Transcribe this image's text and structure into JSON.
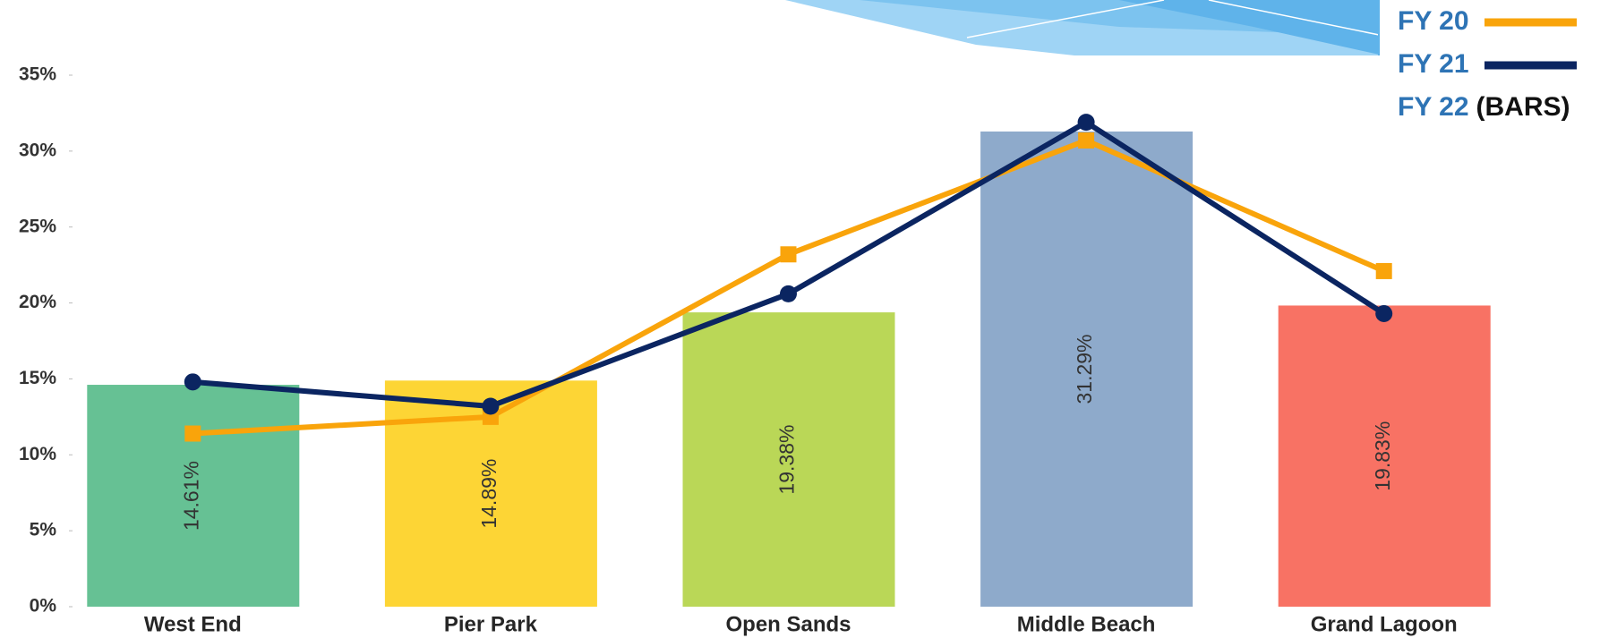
{
  "chart_data": {
    "type": "bar_line",
    "categories": [
      "West End",
      "Pier Park",
      "Open Sands",
      "Middle Beach",
      "Grand Lagoon"
    ],
    "series": [
      {
        "name": "FY 22",
        "kind": "bar",
        "colors": [
          "#66c194",
          "#fdd535",
          "#bad757",
          "#8eaacb",
          "#f87264"
        ],
        "values": [
          14.61,
          14.89,
          19.38,
          31.29,
          19.83
        ],
        "value_labels": [
          "14.61%",
          "14.89%",
          "19.38%",
          "31.29%",
          "19.83%"
        ]
      },
      {
        "name": "FY 20",
        "kind": "line",
        "marker": "square",
        "color": "#f9a40b",
        "values": [
          11.4,
          12.5,
          23.2,
          30.7,
          22.1
        ]
      },
      {
        "name": "FY 21",
        "kind": "line",
        "marker": "circle",
        "color": "#0b2561",
        "values": [
          14.8,
          13.2,
          20.6,
          31.9,
          19.3
        ]
      }
    ],
    "legend_note": "(BARS)",
    "ylim": [
      0,
      35
    ],
    "yticks": [
      {
        "value": 0,
        "label": "0%"
      },
      {
        "value": 5,
        "label": "5%"
      },
      {
        "value": 10,
        "label": "10%"
      },
      {
        "value": 15,
        "label": "15%"
      },
      {
        "value": 20,
        "label": "20%"
      },
      {
        "value": 25,
        "label": "25%"
      },
      {
        "value": 30,
        "label": "30%"
      },
      {
        "value": 35,
        "label": "35%"
      }
    ],
    "grid": false
  }
}
